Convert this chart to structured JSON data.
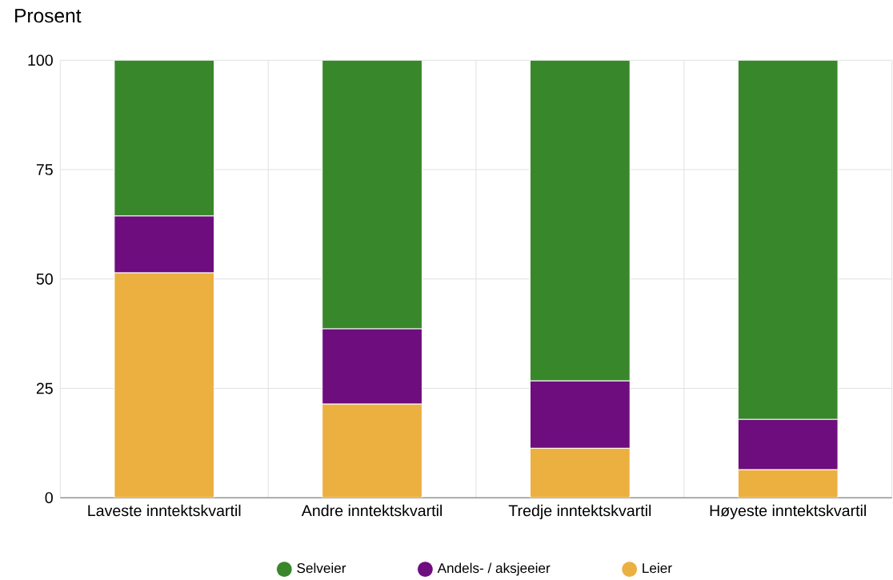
{
  "chart_data": {
    "type": "bar",
    "stacked": true,
    "ylabel": "Prosent",
    "categories": [
      "Laveste inntektskvartil",
      "Andre inntektskvartil",
      "Tredje inntektskvartil",
      "Høyeste inntektskvartil"
    ],
    "series": [
      {
        "name": "Leier",
        "color": "#ecb040",
        "values": [
          51.4,
          21.4,
          11.3,
          6.4
        ]
      },
      {
        "name": "Andels- / aksjeeier",
        "color": "#6d0d7e",
        "values": [
          13.0,
          17.2,
          15.4,
          11.5
        ]
      },
      {
        "name": "Selveier",
        "color": "#38872a",
        "values": [
          35.6,
          61.4,
          73.3,
          82.1
        ]
      }
    ],
    "ylim": [
      0,
      100
    ],
    "yticks": [
      0,
      25,
      50,
      75,
      100
    ],
    "grid": true,
    "legend": "bottom",
    "marker": "circle"
  }
}
